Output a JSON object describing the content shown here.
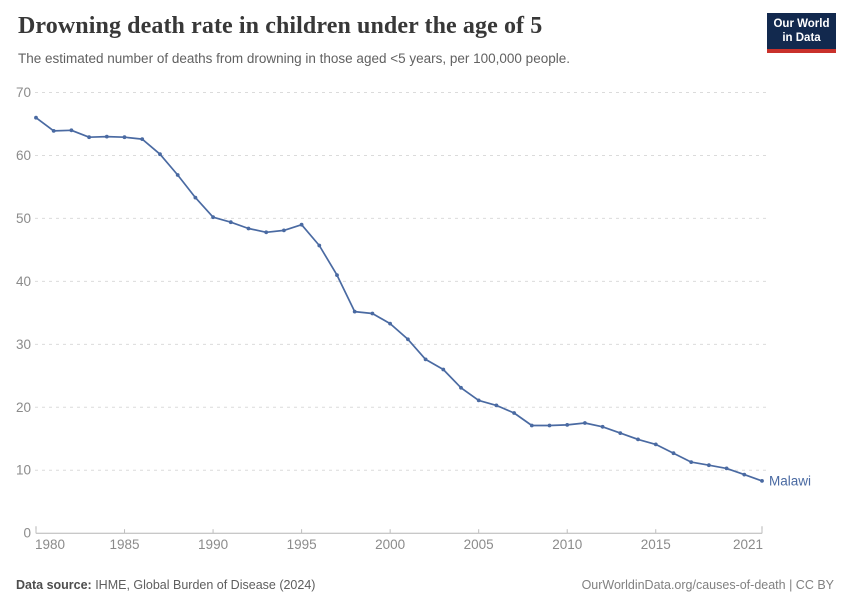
{
  "header": {
    "title": "Drowning death rate in children under the age of 5",
    "subtitle": "The estimated number of deaths from drowning in those aged <5 years, per 100,000 people.",
    "logo": {
      "line1": "Our World",
      "line2": "in Data"
    }
  },
  "chart_data": {
    "type": "line",
    "title": "Drowning death rate in children under the age of 5",
    "xlabel": "",
    "ylabel": "deaths per 100,000 people",
    "ylim": [
      0,
      70
    ],
    "xlim": [
      1980,
      2021
    ],
    "yticks": [
      0,
      10,
      20,
      30,
      40,
      50,
      60,
      70
    ],
    "xticks": [
      1980,
      1985,
      1990,
      1995,
      2000,
      2005,
      2010,
      2015,
      2021
    ],
    "grid": "horizontal-dashed",
    "legend_position": "end-of-line-label",
    "series": [
      {
        "name": "Malawi",
        "x": [
          1980,
          1981,
          1982,
          1983,
          1984,
          1985,
          1986,
          1987,
          1988,
          1989,
          1990,
          1991,
          1992,
          1993,
          1994,
          1995,
          1996,
          1997,
          1998,
          1999,
          2000,
          2001,
          2002,
          2003,
          2004,
          2005,
          2006,
          2007,
          2008,
          2009,
          2010,
          2011,
          2012,
          2013,
          2014,
          2015,
          2016,
          2017,
          2018,
          2019,
          2020,
          2021
        ],
        "values": [
          66.0,
          63.9,
          64.0,
          62.9,
          63.0,
          62.9,
          62.6,
          60.2,
          56.9,
          53.3,
          50.2,
          49.4,
          48.4,
          47.8,
          48.1,
          49.0,
          45.7,
          41.0,
          35.2,
          34.9,
          33.3,
          30.8,
          27.6,
          26.0,
          23.1,
          21.1,
          20.3,
          19.1,
          17.1,
          17.1,
          17.2,
          17.5,
          16.9,
          15.9,
          14.9,
          14.1,
          12.7,
          11.3,
          10.8,
          10.3,
          9.3,
          8.3
        ]
      }
    ]
  },
  "footer": {
    "datasource_label": "Data source:",
    "datasource_value": " IHME, Global Burden of Disease (2024)",
    "link": "OurWorldinData.org/causes-of-death | CC BY"
  },
  "colors": {
    "line": "#4A6AA2",
    "series_label": "#4A6AA2",
    "gridline": "#DBDBDB",
    "axis_line": "#B5B5B5",
    "tick": "#BDBDBD",
    "axis_text": "#8B8B8B",
    "logo_bg": "#12294E",
    "logo_stripe": "#C9312B"
  }
}
